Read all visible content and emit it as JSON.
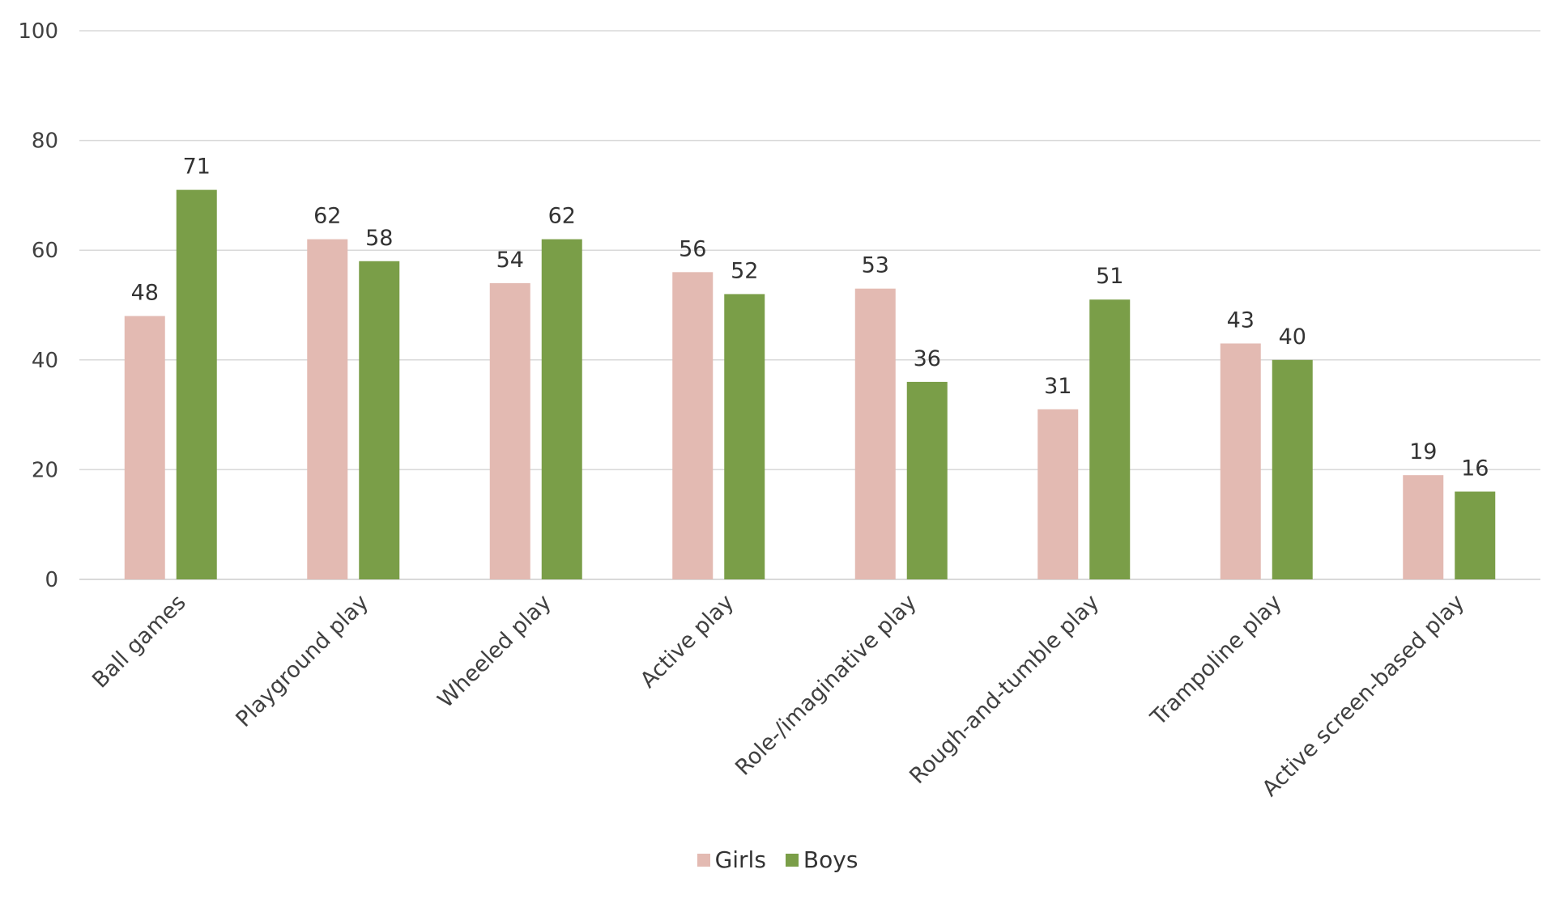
{
  "chart_data": {
    "type": "bar",
    "categories": [
      "Ball games",
      "Playground play",
      "Wheeled play",
      "Active play",
      "Role-/imaginative play",
      "Rough-and-tumble play",
      "Trampoline play",
      "Active screen-based play"
    ],
    "series": [
      {
        "name": "Girls",
        "color": "#e3bab2",
        "values": [
          48,
          62,
          54,
          56,
          53,
          31,
          43,
          19
        ]
      },
      {
        "name": "Boys",
        "color": "#7a9e48",
        "values": [
          71,
          58,
          62,
          52,
          36,
          51,
          40,
          16
        ]
      }
    ],
    "title": "",
    "xlabel": "",
    "ylabel": "",
    "ylim": [
      0,
      100
    ],
    "yticks": [
      0,
      20,
      40,
      60,
      80,
      100
    ],
    "grid": true,
    "gridline_color": "#d9d9d9",
    "data_labels": true,
    "legend_placement": "bottom-center"
  }
}
